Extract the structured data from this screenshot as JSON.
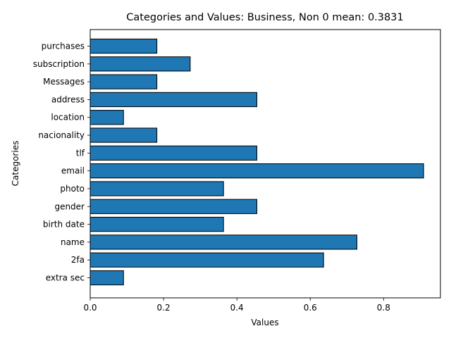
{
  "chart_data": {
    "type": "bar",
    "orientation": "horizontal",
    "title": "Categories and Values: Business, Non 0 mean: 0.3831",
    "xlabel": "Values",
    "ylabel": "Categories",
    "categories": [
      "extra sec",
      "2fa",
      "name",
      "birth date",
      "gender",
      "photo",
      "email",
      "tlf",
      "nacionality",
      "location",
      "address",
      "Messages",
      "subscription",
      "purchases"
    ],
    "values": [
      0.0909,
      0.6364,
      0.7273,
      0.3636,
      0.4545,
      0.3636,
      0.9091,
      0.4545,
      0.1818,
      0.0909,
      0.4545,
      0.1818,
      0.2727,
      0.1818
    ],
    "xlim": [
      0,
      0.955
    ],
    "xticks": [
      "0.0",
      "0.2",
      "0.4",
      "0.6",
      "0.8"
    ],
    "grid": false,
    "bar_color": "#1f77b4",
    "edge_color": "#000000"
  }
}
